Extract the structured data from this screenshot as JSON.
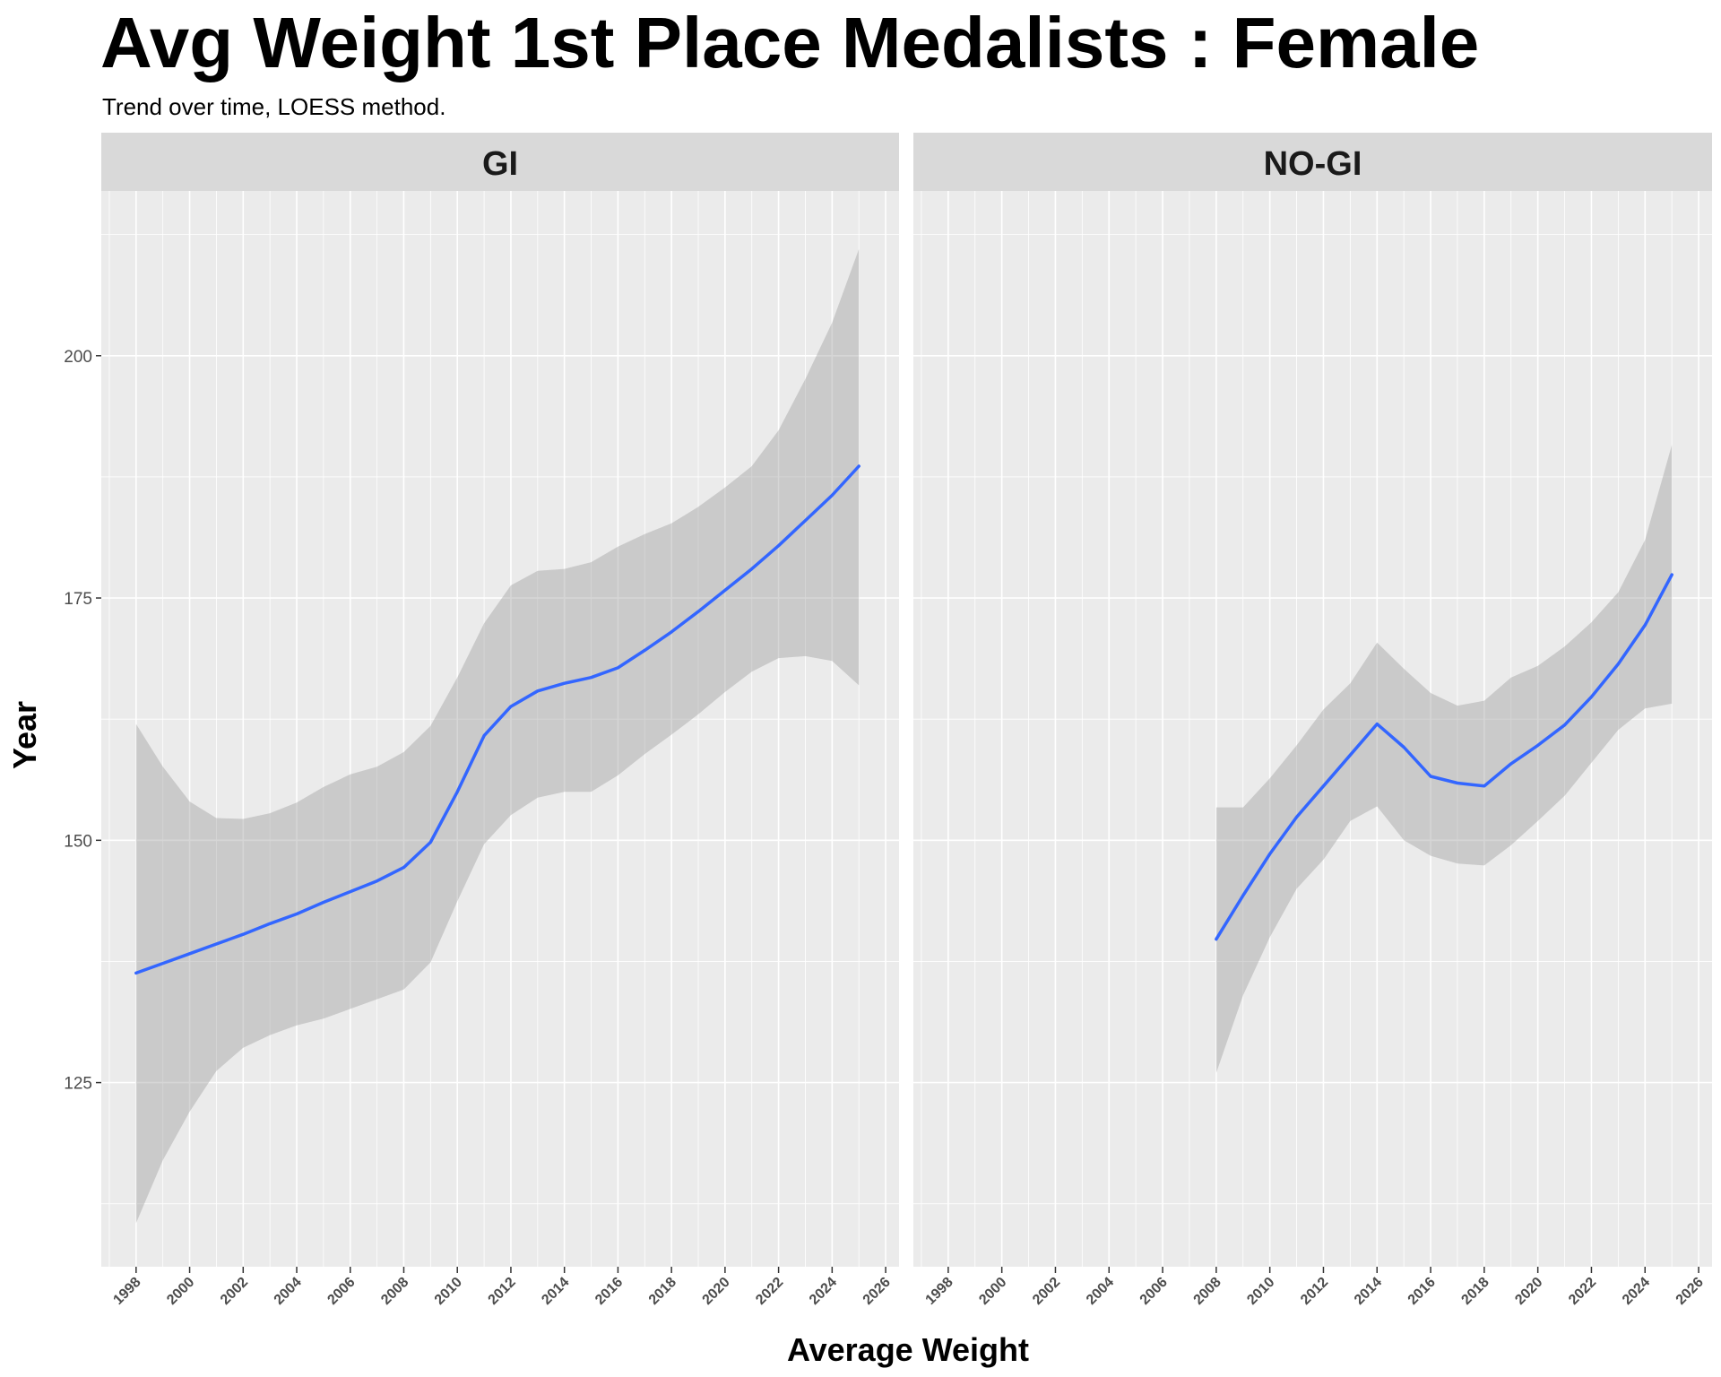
{
  "chart_data": {
    "type": "line",
    "title": "Avg Weight 1st Place Medalists : Female",
    "subtitle": "Trend over time, LOESS method.",
    "xlabel": "Average Weight",
    "ylabel": "Year",
    "xlim": [
      1996.7,
      2026.5
    ],
    "ylim": [
      106,
      217
    ],
    "x_ticks": [
      1998,
      2000,
      2002,
      2004,
      2006,
      2008,
      2010,
      2012,
      2014,
      2016,
      2018,
      2020,
      2022,
      2024,
      2026
    ],
    "y_ticks": [
      125,
      150,
      175,
      200
    ],
    "grid": true,
    "colors": {
      "line": "#3366FF",
      "ribbon": "#999999",
      "panel": "#EBEBEB",
      "strip": "#D9D9D9"
    },
    "facets": [
      {
        "label": "GI",
        "series": [
          {
            "x": [
              1998,
              1999,
              2000,
              2001,
              2002,
              2003,
              2004,
              2005,
              2006,
              2007,
              2008,
              2009,
              2010,
              2011,
              2012,
              2013,
              2014,
              2015,
              2016,
              2017,
              2018,
              2019,
              2020,
              2021,
              2022,
              2023,
              2024,
              2025
            ],
            "y": [
              136.3,
              137.3,
              138.3,
              139.3,
              140.3,
              141.4,
              142.4,
              143.6,
              144.7,
              145.8,
              147.2,
              149.8,
              155.0,
              160.8,
              163.8,
              165.4,
              166.2,
              166.8,
              167.8,
              169.6,
              171.5,
              173.6,
              175.8,
              178.0,
              180.4,
              183.0,
              185.6,
              188.6
            ],
            "lower": [
              110.5,
              117.0,
              122.0,
              126.2,
              128.6,
              129.9,
              130.9,
              131.6,
              132.6,
              133.6,
              134.6,
              137.4,
              143.7,
              149.6,
              152.6,
              154.4,
              155.0,
              155.0,
              156.7,
              158.9,
              160.9,
              163.0,
              165.3,
              167.4,
              168.8,
              169.0,
              168.5,
              166.0
            ],
            "upper": [
              162.0,
              157.6,
              154.0,
              152.3,
              152.2,
              152.8,
              153.9,
              155.5,
              156.8,
              157.6,
              159.1,
              161.8,
              166.8,
              172.4,
              176.3,
              177.8,
              178.0,
              178.7,
              180.3,
              181.6,
              182.7,
              184.4,
              186.4,
              188.6,
              192.3,
              197.6,
              203.4,
              211.0
            ]
          }
        ]
      },
      {
        "label": "NO-GI",
        "series": [
          {
            "x": [
              2008,
              2009,
              2010,
              2011,
              2012,
              2013,
              2014,
              2015,
              2016,
              2017,
              2018,
              2019,
              2020,
              2021,
              2022,
              2023,
              2024,
              2025
            ],
            "y": [
              139.8,
              144.3,
              148.6,
              152.4,
              155.6,
              158.8,
              162.0,
              159.6,
              156.6,
              155.9,
              155.6,
              157.9,
              159.8,
              161.9,
              164.8,
              168.2,
              172.2,
              177.4
            ],
            "lower": [
              126.0,
              134.0,
              140.0,
              145.0,
              148.0,
              152.0,
              153.5,
              150.0,
              148.4,
              147.6,
              147.4,
              149.5,
              152.0,
              154.6,
              158.0,
              161.4,
              163.6,
              164.1
            ],
            "upper": [
              153.4,
              153.4,
              156.4,
              159.8,
              163.5,
              166.2,
              170.4,
              167.7,
              165.2,
              163.9,
              164.4,
              166.8,
              168.0,
              170.0,
              172.5,
              175.6,
              181.0,
              190.8
            ]
          }
        ]
      }
    ]
  }
}
